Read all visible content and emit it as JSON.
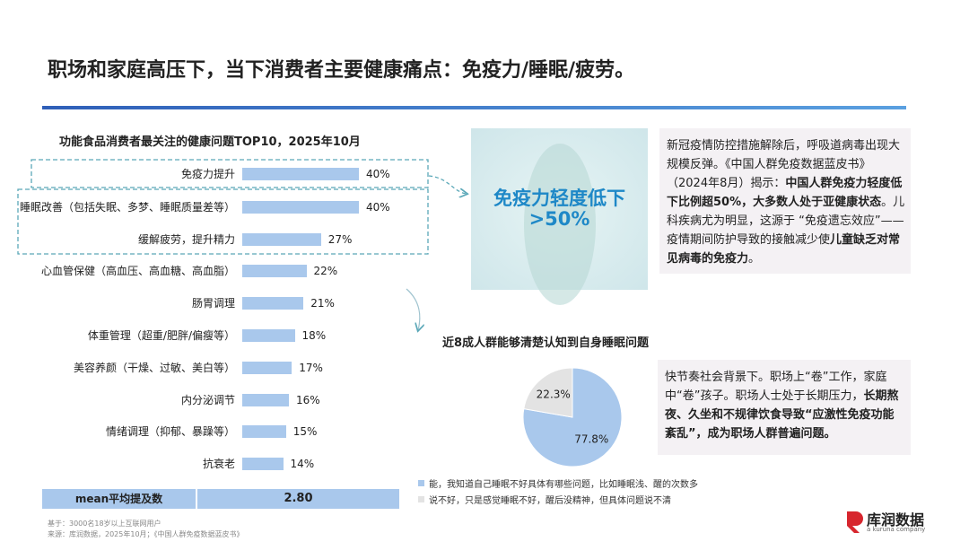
{
  "title": "职场和家庭高压下，当下消费者主要健康痛点：免疫力/睡眠/疲劳。",
  "chart_data": [
    {
      "type": "bar",
      "title": "功能食品消费者最关注的健康问题TOP10，2025年10月",
      "categories": [
        "免疫力提升",
        "睡眠改善（包括失眠、多梦、睡眠质量差等）",
        "缓解疲劳，提升精力",
        "心血管保健（高血压、高血糖、高血脂）",
        "肠胃调理",
        "体重管理（超重/肥胖/偏瘦等）",
        "美容养颜（干燥、过敏、美白等）",
        "内分泌调节",
        "情绪调理（抑郁、暴躁等）",
        "抗衰老"
      ],
      "values": [
        40,
        40,
        27,
        22,
        21,
        18,
        17,
        16,
        15,
        14
      ],
      "value_labels": [
        "40%",
        "40%",
        "27%",
        "22%",
        "21%",
        "18%",
        "17%",
        "16%",
        "15%",
        "14%"
      ],
      "color": "#a9c8ec"
    },
    {
      "type": "pie",
      "title": "近8成人群能够清楚认知到自身睡眠问题",
      "categories": [
        "能，我知道自己睡眠不好具体有哪些问题，比如睡眠浅、醒的次数多",
        "说不好，只是感觉睡眠不好，醒后没精神，但具体问题说不清"
      ],
      "values": [
        77.8,
        22.3
      ],
      "value_labels": [
        "77.8%",
        "22.3%"
      ],
      "colors": [
        "#a9c8ec",
        "#e3e3e3"
      ]
    }
  ],
  "mean": {
    "label": "mean平均提及数",
    "value": "2.80"
  },
  "immunity": {
    "headline": "免疫力轻度低下",
    "figure": ">50%",
    "paragraph": [
      {
        "text": "新冠疫情防控措施解除后，呼吸道病毒出现大规模反弹。《中国人群免疫数据蓝皮书》（2024年8月）揭示：",
        "bold": false
      },
      {
        "text": "中国人群免疫力轻度低下比例超50%，大多数人处于亚健康状态",
        "bold": true
      },
      {
        "text": "。儿科疾病尤为明显，这源于 “免疫遗忘效应”—— 疫情期间防护导致的接触减少使",
        "bold": false
      },
      {
        "text": "儿童缺乏对常见病毒的免疫力",
        "bold": true
      },
      {
        "text": "。",
        "bold": false
      }
    ]
  },
  "sleep": {
    "paragraph": [
      {
        "text": "快节奏社会背景下。职场上“卷”工作，家庭中“卷”孩子。职场人士处于长期压力，",
        "bold": false
      },
      {
        "text": "长期熬夜、久坐和不规律饮食导致“应激性免疫功能紊乱”，成为职场人群普遍问题。",
        "bold": true
      }
    ]
  },
  "footnotes": [
    "基于：3000名18岁以上互联网用户",
    "来源：库润数据，2025年10月；《中国人群免疫数据蓝皮书》"
  ],
  "logo": {
    "name": "库润数据",
    "tagline": "a kuruna company"
  }
}
